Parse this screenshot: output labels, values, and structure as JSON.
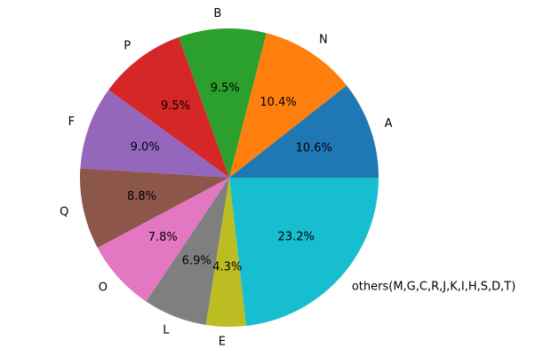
{
  "chart_data": {
    "type": "pie",
    "title": "",
    "start_angle_deg": 0,
    "direction": "counterclockwise",
    "legend": "none",
    "slices": [
      {
        "label": "A",
        "value": 10.6,
        "pct_label": "10.6%",
        "color": "#1f77b4"
      },
      {
        "label": "N",
        "value": 10.4,
        "pct_label": "10.4%",
        "color": "#ff7f0e"
      },
      {
        "label": "B",
        "value": 9.5,
        "pct_label": "9.5%",
        "color": "#2ca02c"
      },
      {
        "label": "P",
        "value": 9.5,
        "pct_label": "9.5%",
        "color": "#d62728"
      },
      {
        "label": "F",
        "value": 9.0,
        "pct_label": "9.0%",
        "color": "#9467bd"
      },
      {
        "label": "Q",
        "value": 8.8,
        "pct_label": "8.8%",
        "color": "#8c564b"
      },
      {
        "label": "O",
        "value": 7.8,
        "pct_label": "7.8%",
        "color": "#e377c2"
      },
      {
        "label": "L",
        "value": 6.9,
        "pct_label": "6.9%",
        "color": "#7f7f7f"
      },
      {
        "label": "E",
        "value": 4.3,
        "pct_label": "4.3%",
        "color": "#bcbd22"
      },
      {
        "label": "others(M,G,C,R,J,K,I,H,S,D,T)",
        "value": 23.2,
        "pct_label": "23.2%",
        "color": "#17becf"
      }
    ]
  }
}
